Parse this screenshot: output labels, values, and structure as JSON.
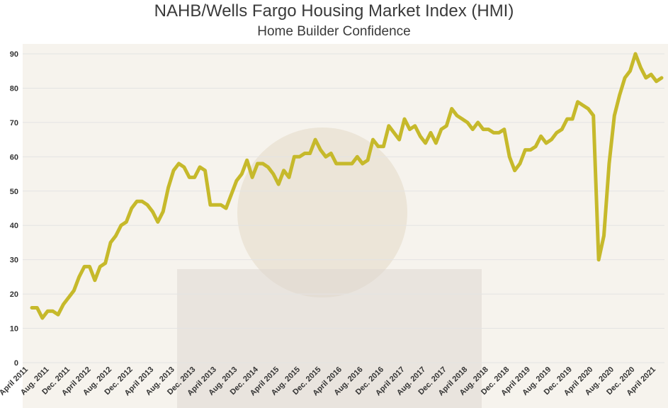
{
  "title": "NAHB/Wells Fargo Housing Market Index (HMI)",
  "subtitle": "Home Builder Confidence",
  "colors": {
    "line": "#c6b92b",
    "grid": "#e3e3e3",
    "background_tint": "#efe9df"
  },
  "chart_data": {
    "type": "line",
    "title": "NAHB/Wells Fargo Housing Market Index (HMI)",
    "subtitle": "Home Builder Confidence",
    "xlabel": "",
    "ylabel": "",
    "ylim": [
      0,
      90
    ],
    "yticks": [
      0,
      10,
      20,
      30,
      40,
      50,
      60,
      70,
      80,
      90
    ],
    "grid": true,
    "legend": "none",
    "x_tick_labels": [
      "April 2011",
      "Aug. 2011",
      "Dec. 2011",
      "April 2012",
      "Aug. 2012",
      "Dec. 2012",
      "April 2013",
      "Aug. 2013",
      "Dec. 2013",
      "April 2013",
      "Aug. 2013",
      "Dec. 2014",
      "April 2015",
      "Aug. 2015",
      "Dec. 2015",
      "April 2016",
      "Aug. 2016",
      "Dec. 2016",
      "April 2017",
      "Aug. 2017",
      "Dec. 2017",
      "April 2018",
      "Aug. 2018",
      "Dec. 2018",
      "April 2019",
      "Aug. 2019",
      "Dec. 2019",
      "April 2020",
      "Aug. 2020",
      "Dec. 2020",
      "April 2021"
    ],
    "series": [
      {
        "values": [
          16,
          16,
          13,
          15,
          15,
          14,
          17,
          19,
          21,
          25,
          28,
          28,
          24,
          28,
          29,
          35,
          37,
          40,
          41,
          45,
          47,
          47,
          46,
          44,
          41,
          44,
          51,
          56,
          58,
          57,
          54,
          54,
          57,
          56,
          46,
          46,
          46,
          45,
          49,
          53,
          55,
          59,
          54,
          58,
          58,
          57,
          55,
          52,
          56,
          54,
          60,
          60,
          61,
          61,
          65,
          62,
          60,
          61,
          58,
          58,
          58,
          58,
          60,
          58,
          59,
          65,
          63,
          63,
          69,
          67,
          65,
          71,
          68,
          69,
          66,
          64,
          67,
          64,
          68,
          69,
          74,
          72,
          71,
          70,
          68,
          70,
          68,
          68,
          67,
          67,
          68,
          60,
          56,
          58,
          62,
          62,
          63,
          66,
          64,
          65,
          67,
          68,
          71,
          71,
          76,
          75,
          74,
          72,
          30,
          37,
          58,
          72,
          78,
          83,
          85,
          90,
          86,
          83,
          84,
          82,
          83
        ]
      }
    ]
  }
}
